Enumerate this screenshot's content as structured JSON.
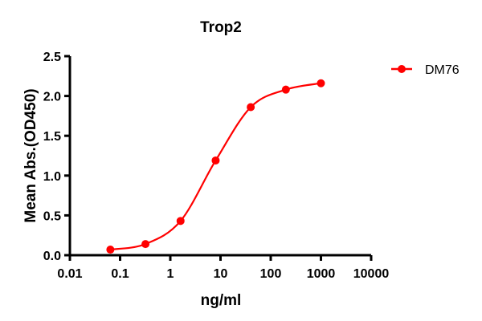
{
  "chart_data": {
    "type": "line",
    "title": "Trop2",
    "xlabel": "ng/ml",
    "ylabel": "Mean Abs.(OD450)",
    "x_scale": "log",
    "xlim": [
      0.01,
      10000
    ],
    "ylim": [
      0,
      2.5
    ],
    "x_ticks": [
      "0.01",
      "0.1",
      "1",
      "10",
      "100",
      "1000",
      "10000"
    ],
    "y_ticks": [
      "0.0",
      "0.5",
      "1.0",
      "1.5",
      "2.0",
      "2.5"
    ],
    "grid": false,
    "legend_position": "top-right",
    "series": [
      {
        "name": "DM76",
        "color": "#ff0000",
        "x": [
          0.064,
          0.32,
          1.6,
          8,
          40,
          200,
          1000
        ],
        "y": [
          0.07,
          0.14,
          0.43,
          1.19,
          1.86,
          2.08,
          2.16
        ]
      }
    ]
  }
}
